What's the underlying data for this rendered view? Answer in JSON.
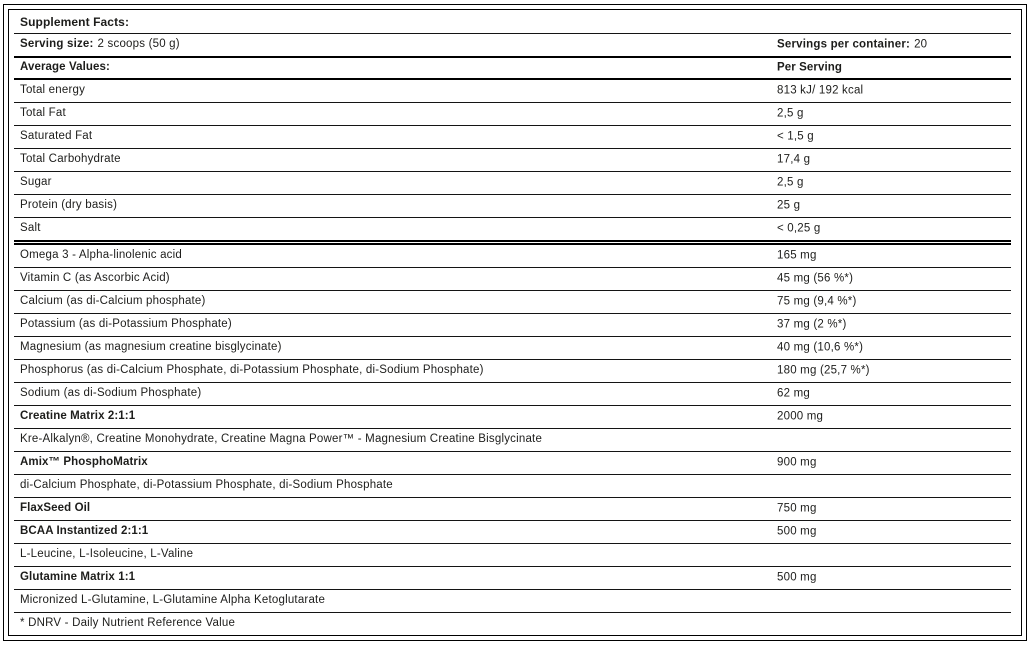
{
  "label": {
    "title": "Supplement Facts:",
    "serving": {
      "size_label": "Serving size:",
      "size_value": "2 scoops (50 g)",
      "container_label": "Servings per container:",
      "container_value": "20"
    },
    "columns": {
      "left": "Average Values:",
      "right": "Per Serving"
    },
    "rows": [
      {
        "label": "Total energy",
        "value": "813 kJ/ 192 kcal"
      },
      {
        "label": "Total Fat",
        "value": "2,5 g"
      },
      {
        "label": "Saturated Fat",
        "value": "< 1,5 g"
      },
      {
        "label": "Total Carbohydrate",
        "value": "17,4 g"
      },
      {
        "label": "Sugar",
        "value": "2,5 g"
      },
      {
        "label": "Protein (dry basis)",
        "value": "25 g"
      },
      {
        "label": "Salt",
        "value": "< 0,25 g",
        "sep": "double"
      },
      {
        "label": "Omega 3 - Alpha-linolenic acid",
        "value": "165 mg"
      },
      {
        "label": "Vitamin C (as Ascorbic Acid)",
        "value": "45 mg (56 %*)"
      },
      {
        "label": "Calcium (as di-Calcium phosphate)",
        "value": "75 mg (9,4 %*)"
      },
      {
        "label": "Potassium (as di-Potassium Phosphate)",
        "value": "37 mg (2 %*)"
      },
      {
        "label": "Magnesium (as magnesium creatine bisglycinate)",
        "value": "40 mg (10,6 %*)"
      },
      {
        "label": "Phosphorus (as di-Calcium Phosphate, di-Potassium Phosphate, di-Sodium Phosphate)",
        "value": "180 mg (25,7 %*)"
      },
      {
        "label": "Sodium (as di-Sodium Phosphate)",
        "value": "62 mg",
        "sep": "med"
      },
      {
        "label": "Creatine Matrix 2:1:1",
        "value": "2000 mg",
        "bold": true
      },
      {
        "label": "Kre-Alkalyn®, Creatine Monohydrate, Creatine Magna Power™ - Magnesium Creatine Bisglycinate",
        "value": ""
      },
      {
        "label": "Amix™ PhosphoMatrix",
        "value": "900 mg",
        "bold": true
      },
      {
        "label": "di-Calcium Phosphate, di-Potassium Phosphate, di-Sodium Phosphate",
        "value": ""
      },
      {
        "label": "FlaxSeed Oil",
        "value": "750 mg",
        "bold": true
      },
      {
        "label": "BCAA Instantized 2:1:1",
        "value": "500 mg",
        "bold": true
      },
      {
        "label": "L-Leucine, L-Isoleucine, L-Valine",
        "value": ""
      },
      {
        "label": "Glutamine Matrix 1:1",
        "value": "500 mg",
        "bold": true
      },
      {
        "label": "Micronized L-Glutamine, L-Glutamine Alpha Ketoglutarate",
        "value": ""
      },
      {
        "label": "* DNRV - Daily Nutrient Reference Value",
        "value": "",
        "sep": "none"
      }
    ],
    "colors": {
      "text": "#1d1d1b",
      "border": "#000000",
      "background": "#ffffff"
    }
  }
}
